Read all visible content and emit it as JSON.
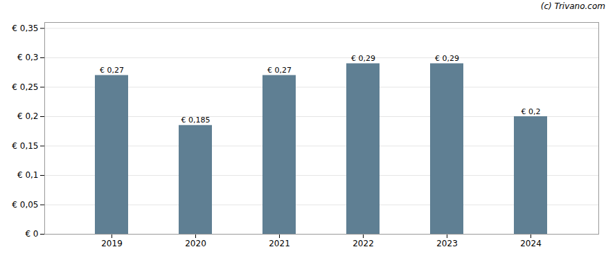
{
  "chart_data": {
    "type": "bar",
    "categories": [
      "2019",
      "2020",
      "2021",
      "2022",
      "2023",
      "2024"
    ],
    "values": [
      0.27,
      0.185,
      0.27,
      0.29,
      0.29,
      0.2
    ],
    "value_labels": [
      "€ 0,27",
      "€ 0,185",
      "€ 0,27",
      "€ 0,29",
      "€ 0,29",
      "€ 0,2"
    ],
    "data_labels": true,
    "color": "#5f7f93",
    "ylim": [
      0,
      0.36
    ],
    "yticks": [
      {
        "value": 0,
        "label": "€ 0"
      },
      {
        "value": 0.05,
        "label": "€ 0,05"
      },
      {
        "value": 0.1,
        "label": "€ 0,1"
      },
      {
        "value": 0.15,
        "label": "€ 0,15"
      },
      {
        "value": 0.2,
        "label": "€ 0,2"
      },
      {
        "value": 0.25,
        "label": "€ 0,25"
      },
      {
        "value": 0.3,
        "label": "€ 0,3"
      },
      {
        "value": 0.35,
        "label": "€ 0,35"
      }
    ],
    "grid": true,
    "annotations": [
      "(c) Trivano.com"
    ]
  }
}
